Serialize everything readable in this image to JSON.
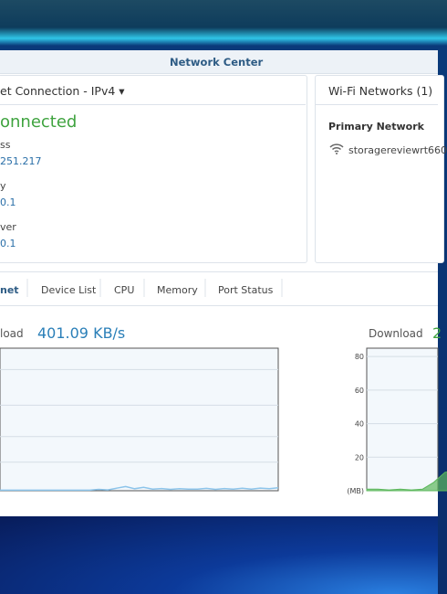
{
  "window": {
    "title": "Network Center"
  },
  "connection": {
    "header": "et Connection - IPv4",
    "status": "onnected",
    "fields": [
      {
        "label": "ss",
        "value": "251.217"
      },
      {
        "label": "y",
        "value": "0.1"
      },
      {
        "label": "ver",
        "value": "0.1"
      }
    ]
  },
  "wifi": {
    "header": "Wi-Fi Networks (1)",
    "section": "Primary Network",
    "ssid": "storagereviewrt660"
  },
  "tabs": [
    "net",
    "Device List",
    "CPU",
    "Memory",
    "Port Status"
  ],
  "upload_chart": {
    "type": "line",
    "label": "load",
    "rate": "401.09 KB/s",
    "ylim": [
      0,
      85
    ],
    "values": [
      0.3,
      0.3,
      0.3,
      0.3,
      0.3,
      0.3,
      0.3,
      0.3,
      0.3,
      0.3,
      0.3,
      0.8,
      0.5,
      1.5,
      2.5,
      1.2,
      2,
      1,
      1.3,
      0.8,
      1.2,
      1,
      0.9,
      1.4,
      0.8,
      1.3,
      0.9,
      1.5,
      1,
      1.6,
      1.2,
      1.8
    ],
    "color": "#8cc4ea"
  },
  "download_chart": {
    "type": "area",
    "label": "Download",
    "rate": "2",
    "unit": "(MB)",
    "ylim": [
      0,
      85
    ],
    "yticks": [
      80,
      60,
      40,
      20
    ],
    "values": [
      1,
      1,
      0.5,
      1,
      0.5,
      1,
      5,
      11,
      12
    ],
    "color": "#5cb85c"
  }
}
